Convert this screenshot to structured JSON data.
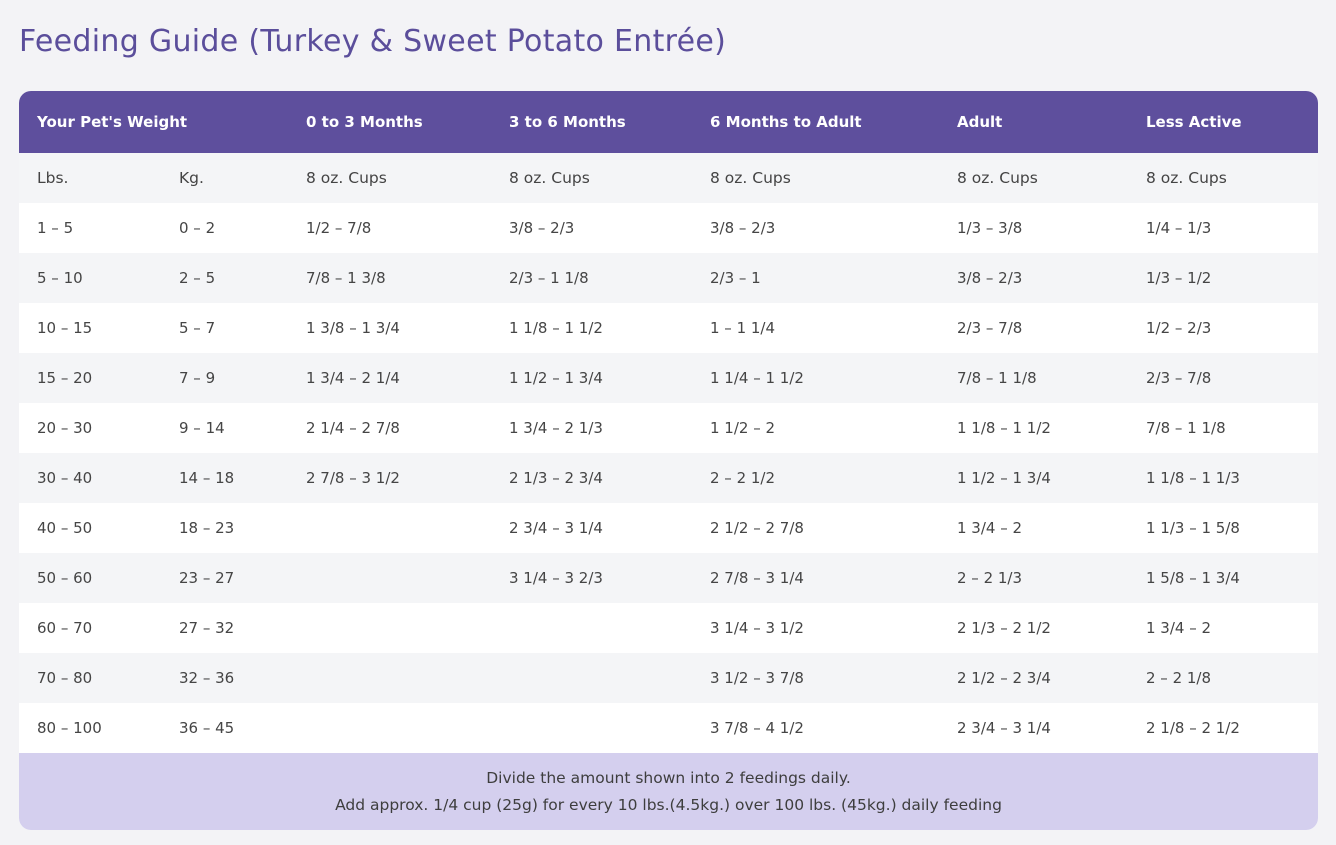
{
  "title": "Feeding Guide (Turkey & Sweet Potato Entrée)",
  "table": {
    "header": [
      "Your Pet's Weight",
      "0 to 3 Months",
      "3 to 6 Months",
      "6 Months to Adult",
      "Adult",
      "Less Active"
    ],
    "subheader": [
      "Lbs.",
      "Kg.",
      "8 oz. Cups",
      "8 oz. Cups",
      "8 oz. Cups",
      "8 oz. Cups",
      "8 oz. Cups"
    ],
    "rows": [
      [
        "1 – 5",
        "0 – 2",
        "1/2 – 7/8",
        "3/8 – 2/3",
        "3/8 – 2/3",
        "1/3 – 3/8",
        "1/4 – 1/3"
      ],
      [
        "5 – 10",
        "2 – 5",
        "7/8 – 1 3/8",
        "2/3 – 1 1/8",
        "2/3 – 1",
        "3/8 – 2/3",
        "1/3 – 1/2"
      ],
      [
        "10 – 15",
        "5 – 7",
        "1 3/8 – 1 3/4",
        "1 1/8 – 1 1/2",
        "1 – 1 1/4",
        "2/3 – 7/8",
        "1/2 – 2/3"
      ],
      [
        "15 – 20",
        "7 – 9",
        "1 3/4 – 2 1/4",
        "1 1/2 – 1 3/4",
        "1 1/4 – 1 1/2",
        "7/8 – 1 1/8",
        "2/3 – 7/8"
      ],
      [
        "20 – 30",
        "9 – 14",
        "2 1/4 – 2 7/8",
        "1 3/4 – 2 1/3",
        "1 1/2 – 2",
        "1 1/8 – 1 1/2",
        "7/8 – 1 1/8"
      ],
      [
        "30 – 40",
        "14 – 18",
        "2 7/8 – 3 1/2",
        "2 1/3 – 2 3/4",
        "2 – 2 1/2",
        "1 1/2 – 1 3/4",
        "1 1/8 – 1 1/3"
      ],
      [
        "40 – 50",
        "18 – 23",
        null,
        "2 3/4 – 3 1/4",
        "2 1/2 – 2 7/8",
        "1 3/4 – 2",
        "1 1/3 – 1 5/8"
      ],
      [
        "50 – 60",
        "23 – 27",
        null,
        "3 1/4 – 3 2/3",
        "2 7/8 – 3 1/4",
        "2 – 2 1/3",
        "1 5/8 – 1 3/4"
      ],
      [
        "60 – 70",
        "27 – 32",
        null,
        null,
        "3 1/4 – 3 1/2",
        "2 1/3 – 2 1/2",
        "1 3/4 – 2"
      ],
      [
        "70 – 80",
        "32 – 36",
        null,
        null,
        "3 1/2 – 3 7/8",
        "2 1/2 – 2 3/4",
        "2 – 2 1/8"
      ],
      [
        "80 – 100",
        "36 – 45",
        null,
        null,
        "3 7/8 – 4 1/2",
        "2 3/4 – 3 1/4",
        "2 1/8 – 2 1/2"
      ]
    ],
    "footer": [
      "Divide the amount shown into 2 feedings daily.",
      "Add approx. 1/4 cup (25g) for every 10 lbs.(4.5kg.) over 100 lbs. (45kg.) daily feeding"
    ]
  }
}
